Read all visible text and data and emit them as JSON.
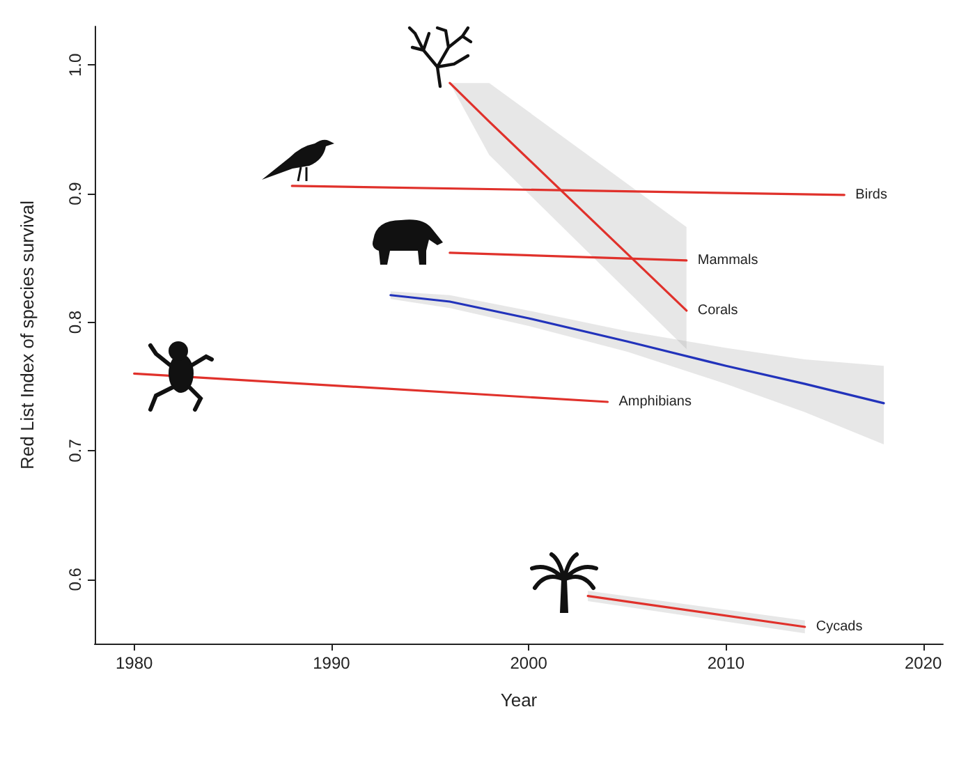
{
  "chart_data": {
    "type": "line",
    "xlabel": "Year",
    "ylabel": "Red List Index of species survival",
    "xlim": [
      1978,
      2021
    ],
    "xticks": [
      1980,
      1990,
      2000,
      2010,
      2020
    ],
    "ylim": [
      0.55,
      1.03
    ],
    "yticks": [
      0.6,
      0.7,
      0.8,
      0.9,
      {
        "value": 1,
        "label": "1.0"
      }
    ],
    "grid": false,
    "legend": false,
    "marker": "none",
    "line_style": "solid",
    "series": [
      {
        "name": "Birds",
        "color": "#e0312b",
        "x": [
          1988,
          2016
        ],
        "values": [
          0.906,
          0.899
        ]
      },
      {
        "name": "Mammals",
        "color": "#e0312b",
        "x": [
          1996,
          2008
        ],
        "values": [
          0.854,
          0.848
        ]
      },
      {
        "name": "Corals",
        "color": "#e0312b",
        "x": [
          1996,
          1998,
          2008
        ],
        "values": [
          0.986,
          0.956,
          0.809
        ],
        "lower": [
          0.986,
          0.93,
          0.779
        ],
        "upper": [
          0.986,
          0.986,
          0.874
        ]
      },
      {
        "name": "Amphibians",
        "color": "#e0312b",
        "x": [
          1980,
          2004
        ],
        "values": [
          0.76,
          0.738
        ]
      },
      {
        "name": "Cycads",
        "color": "#e0312b",
        "x": [
          2003,
          2014
        ],
        "values": [
          0.587,
          0.563
        ],
        "lower": [
          0.583,
          0.558
        ],
        "upper": [
          0.591,
          0.568
        ]
      },
      {
        "color": "#2233bb",
        "x": [
          1993,
          1996,
          2000,
          2005,
          2010,
          2014,
          2018
        ],
        "values": [
          0.821,
          0.816,
          0.803,
          0.785,
          0.766,
          0.752,
          0.737
        ],
        "lower": [
          0.818,
          0.811,
          0.797,
          0.777,
          0.752,
          0.73,
          0.705
        ],
        "upper": [
          0.824,
          0.821,
          0.809,
          0.793,
          0.78,
          0.771,
          0.766
        ]
      }
    ]
  }
}
